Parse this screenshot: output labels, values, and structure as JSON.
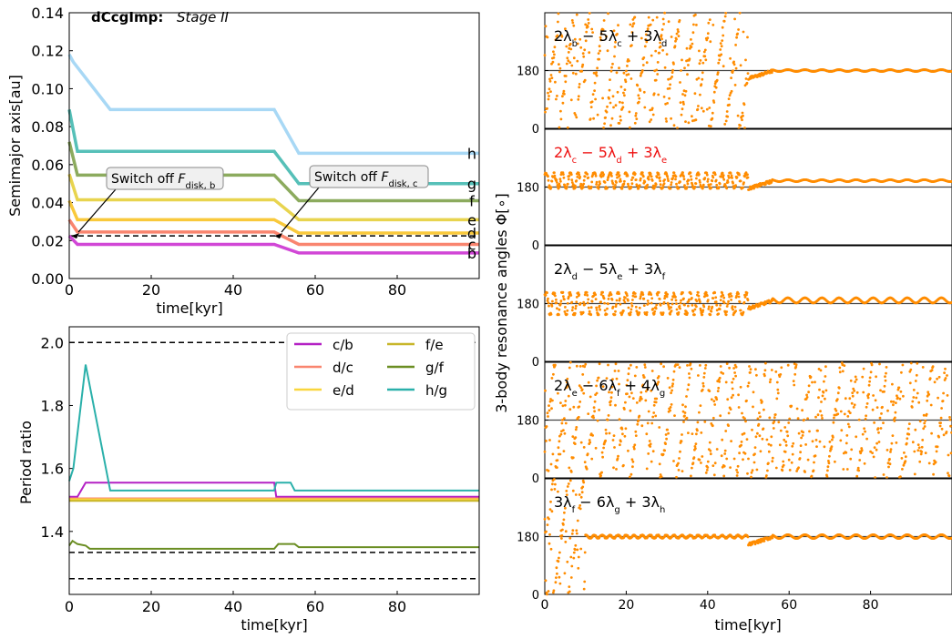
{
  "figure": {
    "main_title_bold": "dCcgImp:",
    "main_title_italic": "Stage II"
  },
  "chart_data": [
    {
      "id": "top_left",
      "type": "line",
      "xlabel": "time[kyr]",
      "ylabel": "Semimajor axis[au]",
      "xlim": [
        0,
        100
      ],
      "ylim": [
        0,
        0.14
      ],
      "xticks": [
        0,
        20,
        40,
        60,
        80
      ],
      "yticks": [
        0.0,
        0.02,
        0.04,
        0.06,
        0.08,
        0.1,
        0.12,
        0.14
      ],
      "ytick_labels": [
        "0.00",
        "0.02",
        "0.04",
        "0.06",
        "0.08",
        "0.10",
        "0.12",
        "0.14"
      ],
      "series": [
        {
          "name": "b",
          "color": "#d147d6",
          "points": [
            [
              0,
              0.0225
            ],
            [
              2,
              0.018
            ],
            [
              50,
              0.018
            ],
            [
              56,
              0.0135
            ],
            [
              100,
              0.0135
            ]
          ]
        },
        {
          "name": "c",
          "color": "#f9856f",
          "points": [
            [
              0,
              0.031
            ],
            [
              2,
              0.0245
            ],
            [
              50,
              0.0245
            ],
            [
              56,
              0.018
            ],
            [
              100,
              0.018
            ]
          ]
        },
        {
          "name": "d",
          "color": "#f9c93b",
          "points": [
            [
              0,
              0.041
            ],
            [
              2,
              0.031
            ],
            [
              50,
              0.031
            ],
            [
              56,
              0.024
            ],
            [
              100,
              0.024
            ]
          ]
        },
        {
          "name": "e",
          "color": "#e8d44f",
          "points": [
            [
              0,
              0.055
            ],
            [
              2,
              0.0415
            ],
            [
              50,
              0.0415
            ],
            [
              56,
              0.031
            ],
            [
              100,
              0.031
            ]
          ]
        },
        {
          "name": "f",
          "color": "#8cab5e",
          "points": [
            [
              0,
              0.072
            ],
            [
              2,
              0.0545
            ],
            [
              50,
              0.0545
            ],
            [
              56,
              0.041
            ],
            [
              100,
              0.041
            ]
          ]
        },
        {
          "name": "g",
          "color": "#56c0b8",
          "points": [
            [
              0,
              0.089
            ],
            [
              2,
              0.067
            ],
            [
              50,
              0.067
            ],
            [
              56,
              0.05
            ],
            [
              100,
              0.05
            ]
          ]
        },
        {
          "name": "h",
          "color": "#a8d8f5",
          "points": [
            [
              0,
              0.118
            ],
            [
              1,
              0.114
            ],
            [
              10,
              0.089
            ],
            [
              50,
              0.089
            ],
            [
              56,
              0.066
            ],
            [
              100,
              0.066
            ]
          ]
        }
      ],
      "hlines": [
        0.0225
      ],
      "annotations": [
        {
          "text": "Switch off F",
          "sub": "disk, b",
          "target": [
            0,
            0.0225
          ]
        },
        {
          "text": "Switch off F",
          "sub": "disk, c",
          "target": [
            50,
            0.0225
          ]
        }
      ],
      "end_labels": [
        "h",
        "g",
        "f",
        "e",
        "d",
        "c",
        "b"
      ]
    },
    {
      "id": "bottom_left",
      "type": "line",
      "xlabel": "time[kyr]",
      "ylabel": "Period ratio",
      "xlim": [
        0,
        100
      ],
      "ylim": [
        1.2,
        2.05
      ],
      "xticks": [
        0,
        20,
        40,
        60,
        80
      ],
      "yticks": [
        1.4,
        1.6,
        1.8,
        2.0
      ],
      "ytick_labels": [
        "1.4",
        "1.6",
        "1.8",
        "2.0"
      ],
      "hlines": [
        2.0,
        1.5,
        1.3333,
        1.25
      ],
      "legend": {
        "position": "top-right",
        "ncol": 2
      },
      "series": [
        {
          "name": "c/b",
          "color": "#b421c4",
          "points": [
            [
              0,
              1.51
            ],
            [
              2,
              1.51
            ],
            [
              4,
              1.555
            ],
            [
              50,
              1.555
            ],
            [
              50.5,
              1.51
            ],
            [
              100,
              1.51
            ]
          ]
        },
        {
          "name": "d/c",
          "color": "#f9856f",
          "points": [
            [
              0,
              1.505
            ],
            [
              100,
              1.505
            ]
          ]
        },
        {
          "name": "e/d",
          "color": "#f9d63d",
          "points": [
            [
              0,
              1.502
            ],
            [
              100,
              1.502
            ]
          ]
        },
        {
          "name": "f/e",
          "color": "#c8b62a",
          "points": [
            [
              0,
              1.497
            ],
            [
              100,
              1.497
            ]
          ]
        },
        {
          "name": "g/f",
          "color": "#6b8e23",
          "points": [
            [
              0,
              1.355
            ],
            [
              0.8,
              1.37
            ],
            [
              2,
              1.36
            ],
            [
              4,
              1.355
            ],
            [
              5,
              1.345
            ],
            [
              50,
              1.345
            ],
            [
              51,
              1.36
            ],
            [
              55,
              1.36
            ],
            [
              56,
              1.35
            ],
            [
              100,
              1.35
            ]
          ]
        },
        {
          "name": "h/g",
          "color": "#2ab0aa",
          "points": [
            [
              0,
              1.56
            ],
            [
              1,
              1.6
            ],
            [
              4,
              1.93
            ],
            [
              10,
              1.53
            ],
            [
              50,
              1.53
            ],
            [
              50.5,
              1.555
            ],
            [
              54,
              1.555
            ],
            [
              55,
              1.53
            ],
            [
              100,
              1.53
            ]
          ]
        }
      ]
    },
    {
      "id": "right",
      "type": "scatter",
      "xlabel": "time[kyr]",
      "ylabel": "3-body resonance angles Φ[∘]",
      "xlim": [
        0,
        100
      ],
      "ylim": [
        0,
        360
      ],
      "xticks": [
        0,
        20,
        40,
        60,
        80
      ],
      "yticks": [
        0,
        180
      ],
      "color": "#ff8c00",
      "panels": [
        {
          "label_html": "2λ<tspan class='s'>b</tspan> − 5λ<tspan class='s'>c</tspan> + 3λ<tspan class='s'>d</tspan>",
          "label_color": "#000000",
          "circulate_until": 50,
          "osc_start_amp": 0,
          "settle_center": 180,
          "settle_amp": 3
        },
        {
          "label_html": "2λ<tspan class='s'>c</tspan> − 5λ<tspan class='s'>d</tspan> + 3λ<tspan class='s'>e</tspan>",
          "label_color": "#ee1111",
          "circulate_until": 0,
          "osc_center": 200,
          "osc_amp": 25,
          "settle_center": 200,
          "settle_amp": 3
        },
        {
          "label_html": "2λ<tspan class='s'>d</tspan> − 5λ<tspan class='s'>e</tspan> + 3λ<tspan class='s'>f</tspan>",
          "label_color": "#000000",
          "circulate_until": 0,
          "osc_center": 180,
          "osc_amp": 35,
          "settle_center": 190,
          "settle_amp": 8
        },
        {
          "label_html": "2λ<tspan class='s'>e</tspan> − 6λ<tspan class='s'>f</tspan> + 4λ<tspan class='s'>g</tspan>",
          "label_color": "#000000",
          "circulate_until": 100,
          "osc_center": 180,
          "osc_amp": 0,
          "settle_center": 180,
          "settle_amp": 0
        },
        {
          "label_html": "3λ<tspan class='s'>f</tspan> − 6λ<tspan class='s'>g</tspan> + 3λ<tspan class='s'>h</tspan>",
          "label_color": "#000000",
          "circulate_until": 10,
          "osc_center": 180,
          "osc_amp": 5,
          "settle_center": 180,
          "settle_amp": 6
        }
      ]
    }
  ]
}
